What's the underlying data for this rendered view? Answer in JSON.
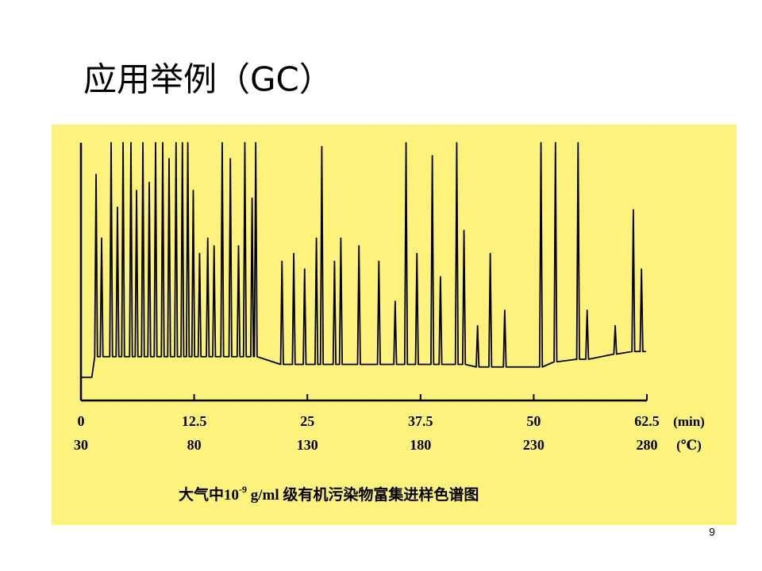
{
  "slide": {
    "title": "应用举例（GC）",
    "page_number": "9"
  },
  "chart_data": {
    "type": "line",
    "color": "#000000",
    "x_unit": "(min)",
    "temperature_unit": "(℃)",
    "caption_parts": [
      "大气中10",
      "-9",
      " g/ml 级有机污染物富集进样色谱图"
    ],
    "xlim": [
      0,
      62.5
    ],
    "xticks": [
      0,
      12.5,
      25,
      37.5,
      50,
      62.5
    ],
    "temperature_ticks": [
      30,
      80,
      130,
      180,
      230,
      280
    ],
    "ylim": [
      0,
      100
    ],
    "x": [
      0,
      1.2,
      1.52,
      1.67,
      1.82,
      2.13,
      2.28,
      2.43,
      3.18,
      3.33,
      3.48,
      3.88,
      4.03,
      4.18,
      4.5,
      4.65,
      4.8,
      5.37,
      5.52,
      5.67,
      5.99,
      6.14,
      6.29,
      6.69,
      6.84,
      6.99,
      7.39,
      7.54,
      7.69,
      8.09,
      8.24,
      8.39,
      8.88,
      9.03,
      9.18,
      9.58,
      9.73,
      9.88,
      10.35,
      10.5,
      10.65,
      11.05,
      11.2,
      11.35,
      11.65,
      11.8,
      11.95,
      12.25,
      12.4,
      12.55,
      12.95,
      13.1,
      13.25,
      13.85,
      14,
      14.15,
      14.55,
      14.7,
      14.85,
      15.45,
      15.6,
      15.75,
      16.35,
      16.5,
      16.65,
      17.25,
      17.4,
      17.55,
      17.95,
      18.1,
      18.25,
      18.75,
      18.9,
      19.05,
      19.15,
      19.3,
      19.45,
      22.05,
      22.2,
      22.35,
      23.35,
      23.5,
      23.65,
      24.55,
      24.7,
      24.85,
      25.85,
      26,
      26.15,
      26.45,
      26.6,
      26.75,
      27.85,
      28,
      28.15,
      28.55,
      28.7,
      28.85,
      30.55,
      30.7,
      30.85,
      32.75,
      32.9,
      33.05,
      34.55,
      34.7,
      34.85,
      35.75,
      35.9,
      36.05,
      36.95,
      37.1,
      37.25,
      38.65,
      38.8,
      38.95,
      39.55,
      39.7,
      39.85,
      41.35,
      41.5,
      41.65,
      42.15,
      42.3,
      42.45,
      43.65,
      43.8,
      43.95,
      45.05,
      45.2,
      45.35,
      46.65,
      46.8,
      46.95,
      50.65,
      50.8,
      50.95,
      52.25,
      52.4,
      52.55,
      54.75,
      54.9,
      55.05,
      55.75,
      55.9,
      56.05,
      58.85,
      59,
      59.15,
      60.85,
      61,
      61.15,
      61.75,
      61.9,
      62.05,
      62.4
    ],
    "values": [
      9,
      9,
      17,
      87.7,
      17,
      17,
      63,
      17,
      17,
      100,
      17,
      17,
      75,
      17,
      17,
      100,
      17,
      17,
      100,
      17,
      17,
      81.5,
      17,
      17,
      100,
      17,
      17,
      84.6,
      17,
      17,
      100,
      17,
      17,
      100,
      17,
      17,
      93.8,
      17,
      17,
      100,
      17,
      17,
      100,
      17,
      17,
      100,
      17,
      17,
      81.5,
      17,
      17,
      57,
      17,
      17,
      63,
      17,
      17,
      60,
      17,
      17,
      100,
      17,
      17,
      93.8,
      17,
      17,
      60,
      17,
      17,
      100,
      17,
      17,
      78.5,
      17,
      17,
      100,
      17,
      14,
      54,
      14,
      14,
      57,
      14,
      14,
      51,
      14,
      14,
      63,
      14,
      14,
      98.5,
      14,
      14,
      54,
      14,
      14,
      63,
      14,
      14,
      60,
      14,
      14,
      54,
      14,
      14,
      38.5,
      14,
      14,
      100,
      14,
      14,
      57,
      14,
      14,
      95,
      14,
      14,
      48,
      14,
      14,
      100,
      14,
      14,
      66,
      14,
      13,
      29,
      13,
      13,
      57,
      13,
      13,
      35,
      13,
      13,
      100,
      13,
      15,
      100,
      15,
      16,
      100,
      16,
      16,
      35,
      16,
      18,
      29,
      18,
      19,
      74,
      19,
      19,
      51,
      19,
      19
    ]
  }
}
